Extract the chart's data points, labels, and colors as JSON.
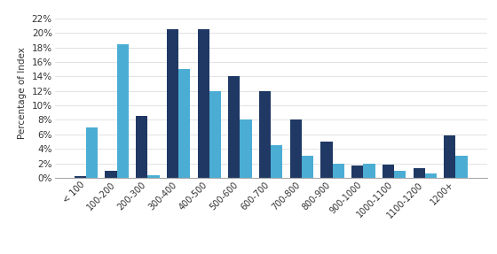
{
  "categories": [
    "< 100",
    "100-200",
    "200-300",
    "300-400",
    "400-500",
    "500-600",
    "600-700",
    "700-800",
    "800-900",
    "900-1000",
    "1000-1100",
    "1100-1200",
    "1200+"
  ],
  "june_2020": [
    0.2,
    1.0,
    8.5,
    20.5,
    20.5,
    14.0,
    12.0,
    8.0,
    5.0,
    1.7,
    1.8,
    1.3,
    5.8
  ],
  "june_2019": [
    7.0,
    18.5,
    0.3,
    15.0,
    12.0,
    8.0,
    4.5,
    3.0,
    2.0,
    2.0,
    1.0,
    0.6,
    3.0
  ],
  "color_2020": "#1f3864",
  "color_2019": "#4badd4",
  "ylabel": "Percentage of Index",
  "ylim": [
    0,
    23.5
  ],
  "yticks": [
    0,
    2,
    4,
    6,
    8,
    10,
    12,
    14,
    16,
    18,
    20,
    22
  ]
}
